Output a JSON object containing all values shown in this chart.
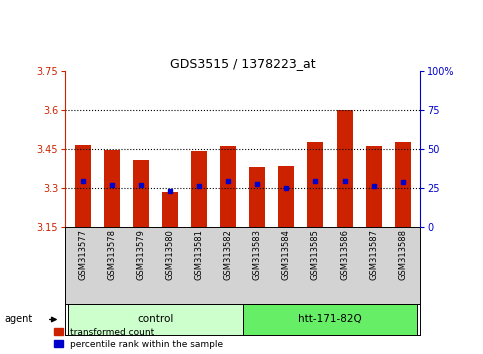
{
  "title": "GDS3515 / 1378223_at",
  "samples": [
    "GSM313577",
    "GSM313578",
    "GSM313579",
    "GSM313580",
    "GSM313581",
    "GSM313582",
    "GSM313583",
    "GSM313584",
    "GSM313585",
    "GSM313586",
    "GSM313587",
    "GSM313588"
  ],
  "bar_tops": [
    3.465,
    3.445,
    3.405,
    3.285,
    3.44,
    3.46,
    3.38,
    3.383,
    3.475,
    3.6,
    3.46,
    3.475
  ],
  "bar_bottom": 3.15,
  "blue_dot_values": [
    3.325,
    3.31,
    3.31,
    3.287,
    3.305,
    3.325,
    3.315,
    3.3,
    3.325,
    3.325,
    3.305,
    3.32
  ],
  "bar_color": "#cc2200",
  "blue_dot_color": "#0000cc",
  "ylim_left": [
    3.15,
    3.75
  ],
  "ylim_right": [
    0,
    100
  ],
  "yticks_left": [
    3.15,
    3.3,
    3.45,
    3.6,
    3.75
  ],
  "ytick_labels_left": [
    "3.15",
    "3.3",
    "3.45",
    "3.6",
    "3.75"
  ],
  "yticks_right": [
    0,
    25,
    50,
    75,
    100
  ],
  "ytick_labels_right": [
    "0",
    "25",
    "50",
    "75",
    "100%"
  ],
  "hlines": [
    3.3,
    3.45,
    3.6
  ],
  "groups": [
    {
      "label": "control",
      "start": 0,
      "end": 5,
      "color": "#ccffcc"
    },
    {
      "label": "htt-171-82Q",
      "start": 6,
      "end": 11,
      "color": "#66ee66"
    }
  ],
  "agent_label": "agent",
  "bar_width": 0.55,
  "bg_plot": "#ffffff",
  "tick_area_color": "#d3d3d3",
  "grid_color": "#000000",
  "left_axis_color": "#cc2200",
  "right_axis_color": "#0000cc"
}
